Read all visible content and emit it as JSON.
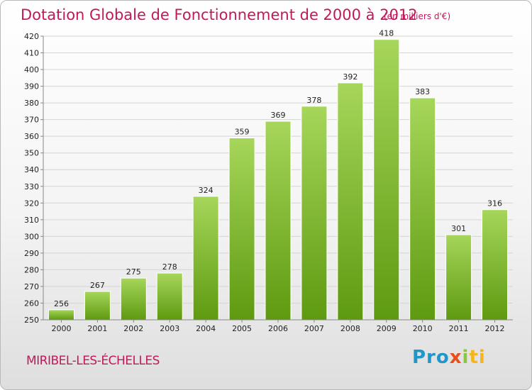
{
  "header": {
    "title": "Dotation Globale de Fonctionnement de 2000 à 2012",
    "unit": "(en milliers d'€)"
  },
  "footer": {
    "commune": "MIRIBEL-LES-ÉCHELLES",
    "logo": "Proxiti"
  },
  "colors": {
    "accent": "#c2185b",
    "bar_top": "#a6d65a",
    "bar_bottom": "#5e9a10"
  },
  "chart_data": {
    "type": "bar",
    "categories": [
      "2000",
      "2001",
      "2002",
      "2003",
      "2004",
      "2005",
      "2006",
      "2007",
      "2008",
      "2009",
      "2010",
      "2011",
      "2012"
    ],
    "values": [
      256,
      267,
      275,
      278,
      324,
      359,
      369,
      378,
      392,
      418,
      383,
      301,
      316
    ],
    "title": "Dotation Globale de Fonctionnement de 2000 à 2012",
    "ylabel": "(en milliers d'€)",
    "ylim": [
      250,
      420
    ],
    "yticks": [
      250,
      260,
      270,
      280,
      290,
      300,
      310,
      320,
      330,
      340,
      350,
      360,
      370,
      380,
      390,
      400,
      410,
      420
    ],
    "grid": true,
    "data_labels": true
  }
}
